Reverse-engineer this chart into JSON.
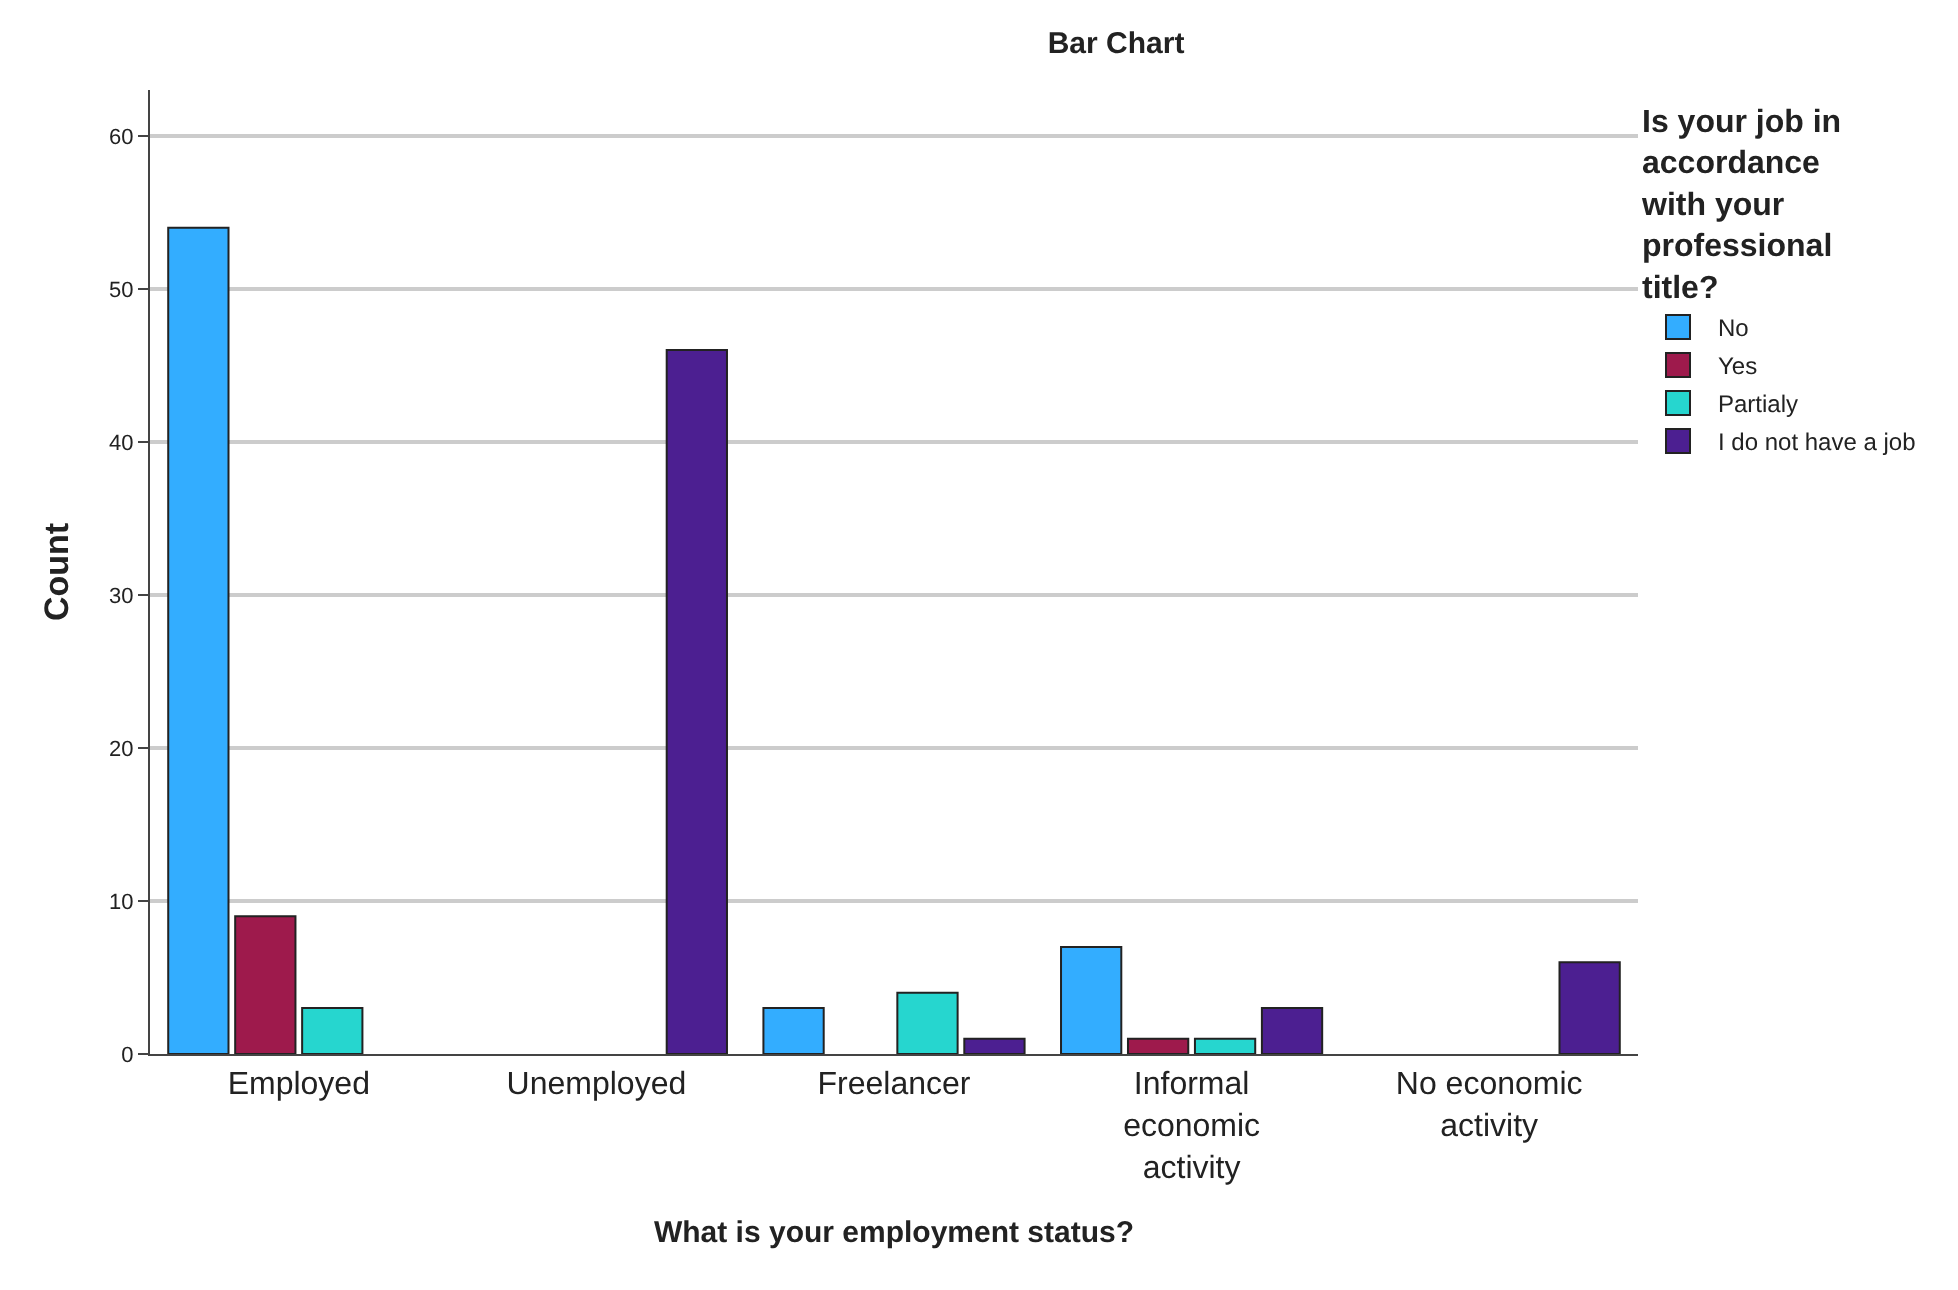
{
  "chart_data": {
    "type": "bar",
    "title": "Bar Chart",
    "xlabel": "What is your employment status?",
    "ylabel": "Count",
    "legend_title": "Is your job in accordance with your professional title?",
    "categories": [
      "Employed",
      "Unemployed",
      "Freelancer",
      "Informal economic activity",
      "No economic activity"
    ],
    "series": [
      {
        "name": "No",
        "color": "#33adff",
        "values": [
          54,
          null,
          3,
          7,
          null
        ]
      },
      {
        "name": "Yes",
        "color": "#9e1a4c",
        "values": [
          9,
          null,
          null,
          1,
          null
        ]
      },
      {
        "name": "Partialy",
        "color": "#26d6cf",
        "values": [
          3,
          null,
          4,
          1,
          null
        ]
      },
      {
        "name": "I do not have a job",
        "color": "#4c1f91",
        "values": [
          null,
          46,
          1,
          3,
          6
        ]
      }
    ],
    "ylim": [
      0,
      63
    ],
    "yticks": [
      0,
      10,
      20,
      30,
      40,
      50,
      60
    ],
    "grid": "y",
    "legend": "top right"
  }
}
